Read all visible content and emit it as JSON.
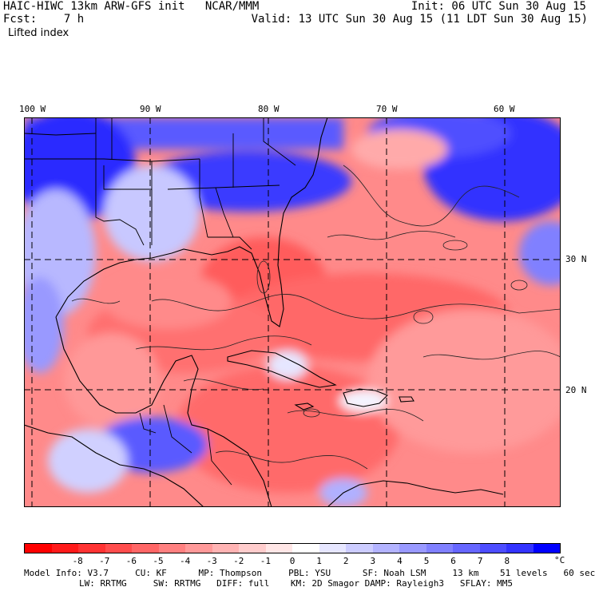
{
  "header": {
    "title_left": "HAIC-HIWC 13km ARW-GFS init   NCAR/MMM",
    "fcst": "Fcst:    7 h",
    "field": "Lifted index",
    "init": "Init: 06 UTC Sun 30 Aug 15",
    "valid": "Valid: 13 UTC Sun 30 Aug 15 (11 LDT Sun 30 Aug 15)"
  },
  "map": {
    "lon_labels": [
      "100 W",
      "90 W",
      "80 W",
      "70 W",
      "60 W"
    ],
    "lat_labels": [
      "30 N",
      "20 N"
    ]
  },
  "colorbar": {
    "colors": [
      "#ff0000",
      "#ff1a1a",
      "#ff3333",
      "#ff4d4d",
      "#ff6666",
      "#ff8080",
      "#ff9999",
      "#ffb3b3",
      "#ffcccc",
      "#ffe6e6",
      "#ffffff",
      "#e6e6ff",
      "#ccccff",
      "#b3b3ff",
      "#9999ff",
      "#8080ff",
      "#6666ff",
      "#4d4dff",
      "#3333ff",
      "#0000ff"
    ],
    "tick_labels": [
      "-8",
      "-7",
      "-6",
      "-5",
      "-4",
      "-3",
      "-2",
      "-1",
      "0",
      "1",
      "2",
      "3",
      "4",
      "5",
      "6",
      "7",
      "8"
    ],
    "unit": "°C"
  },
  "footer": {
    "line1": "Model Info: V3.7     CU: KF      MP: Thompson     PBL: YSU      SF: Noah LSM     13 km    51 levels   60 sec",
    "line2": "LW: RRTMG     SW: RRTMG   DIFF: full    KM: 2D Smagor DAMP: Rayleigh3   SFLAY: MM5"
  }
}
